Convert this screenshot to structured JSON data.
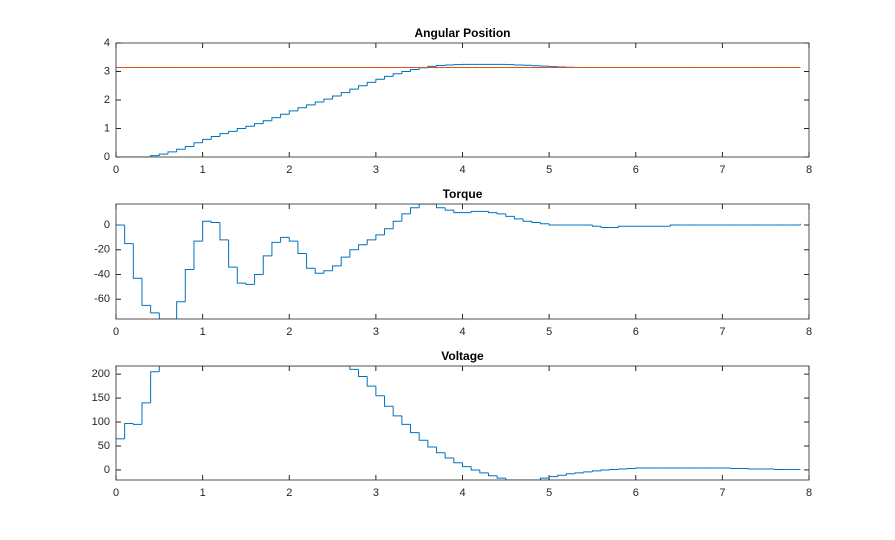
{
  "chart_data": [
    {
      "type": "stairs",
      "title": "Angular Position",
      "x": [
        0,
        0.1,
        0.2,
        0.3,
        0.4,
        0.5,
        0.6,
        0.7,
        0.8,
        0.9,
        1,
        1.1,
        1.2,
        1.3,
        1.4,
        1.5,
        1.6,
        1.7,
        1.8,
        1.9,
        2,
        2.1,
        2.2,
        2.3,
        2.4,
        2.5,
        2.6,
        2.7,
        2.8,
        2.9,
        3,
        3.1,
        3.2,
        3.3,
        3.4,
        3.5,
        3.6,
        3.7,
        3.8,
        3.9,
        4,
        4.1,
        4.2,
        4.3,
        4.4,
        4.5,
        4.6,
        4.7,
        4.8,
        4.9,
        5,
        5.1,
        5.2,
        5.3,
        5.4,
        5.5,
        5.6,
        5.7,
        5.8,
        5.9,
        6,
        6.1,
        6.2,
        6.3,
        6.4,
        6.5,
        6.6,
        6.7,
        6.8,
        6.9,
        7,
        7.1,
        7.2,
        7.3,
        7.4,
        7.5,
        7.6,
        7.7,
        7.8,
        7.9
      ],
      "series": [
        {
          "color": "#0072bd",
          "values": [
            0,
            0,
            0,
            0,
            0.05,
            0.1,
            0.18,
            0.27,
            0.37,
            0.5,
            0.62,
            0.72,
            0.82,
            0.9,
            1.0,
            1.08,
            1.17,
            1.27,
            1.38,
            1.5,
            1.62,
            1.73,
            1.83,
            1.93,
            2.03,
            2.14,
            2.26,
            2.38,
            2.5,
            2.62,
            2.73,
            2.83,
            2.92,
            3.0,
            3.07,
            3.13,
            3.18,
            3.21,
            3.23,
            3.24,
            3.25,
            3.25,
            3.25,
            3.25,
            3.25,
            3.24,
            3.23,
            3.22,
            3.2,
            3.19,
            3.17,
            3.16,
            3.15,
            3.15,
            null,
            null,
            null,
            null,
            null,
            null,
            null,
            null,
            null,
            null,
            null,
            null,
            null,
            null,
            null,
            null,
            null,
            null,
            null,
            null,
            null,
            null,
            null,
            null,
            null,
            null
          ]
        },
        {
          "color": "#d95319",
          "values": [
            3.14,
            3.14,
            3.14,
            3.14,
            3.14,
            3.14,
            3.14,
            3.14,
            3.14,
            3.14,
            3.14,
            3.14,
            3.14,
            3.14,
            3.14,
            3.14,
            3.14,
            3.14,
            3.14,
            3.14,
            3.14,
            3.14,
            3.14,
            3.14,
            3.14,
            3.14,
            3.14,
            3.14,
            3.14,
            3.14,
            3.14,
            3.14,
            3.14,
            3.14,
            3.14,
            3.14,
            3.14,
            3.14,
            3.14,
            3.14,
            3.14,
            3.14,
            3.14,
            3.14,
            3.14,
            3.14,
            3.14,
            3.14,
            3.14,
            3.14,
            3.14,
            3.14,
            3.14,
            3.14,
            3.14,
            3.14,
            3.14,
            3.14,
            3.14,
            3.14,
            3.14,
            3.14,
            3.14,
            3.14,
            3.14,
            3.14,
            3.14,
            3.14,
            3.14,
            3.14,
            3.14,
            3.14,
            3.14,
            3.14,
            3.14,
            3.14,
            3.14,
            3.14,
            3.14,
            3.14
          ]
        }
      ],
      "xlim": [
        0,
        8
      ],
      "xticks": [
        0,
        1,
        2,
        3,
        4,
        5,
        6,
        7,
        8
      ],
      "ylim": [
        0,
        4
      ],
      "yticks": [
        0,
        1,
        2,
        3,
        4
      ]
    },
    {
      "type": "stairs",
      "title": "Torque",
      "x": [
        0,
        0.1,
        0.2,
        0.3,
        0.4,
        0.5,
        0.6,
        0.7,
        0.8,
        0.9,
        1,
        1.1,
        1.2,
        1.3,
        1.4,
        1.5,
        1.6,
        1.7,
        1.8,
        1.9,
        2,
        2.1,
        2.2,
        2.3,
        2.4,
        2.5,
        2.6,
        2.7,
        2.8,
        2.9,
        3,
        3.1,
        3.2,
        3.3,
        3.4,
        3.5,
        3.6,
        3.7,
        3.8,
        3.9,
        4,
        4.1,
        4.2,
        4.3,
        4.4,
        4.5,
        4.6,
        4.7,
        4.8,
        4.9,
        5,
        5.1,
        5.2,
        5.3,
        5.4,
        5.5,
        5.6,
        5.7,
        5.8,
        5.9,
        6,
        6.1,
        6.2,
        6.3,
        6.4,
        6.5,
        6.6,
        6.7,
        6.8,
        6.9,
        7,
        7.1,
        7.2,
        7.3,
        7.4,
        7.5,
        7.6,
        7.7,
        7.8,
        7.9
      ],
      "series": [
        {
          "color": "#0072bd",
          "values": [
            0,
            -15,
            -43,
            -65,
            -71,
            -76,
            -76,
            -62,
            -36,
            -13,
            3,
            2,
            -12,
            -34,
            -47,
            -48,
            -40,
            -25,
            -14,
            -10,
            -13,
            -23,
            -35,
            -39,
            -37,
            -33,
            -26,
            -20,
            -16,
            -12,
            -8,
            -3,
            3,
            9,
            14,
            17,
            17,
            14,
            12,
            10,
            10,
            11,
            11,
            10,
            9,
            7,
            5,
            3,
            2,
            1,
            0,
            0,
            0,
            0,
            0,
            -1,
            -2,
            -2,
            -1,
            -1,
            -1,
            -1,
            -1,
            -1,
            0,
            0,
            0,
            0,
            0,
            0,
            0,
            0,
            0,
            0,
            0,
            0,
            0,
            0,
            0,
            1
          ]
        }
      ],
      "xlim": [
        0,
        8
      ],
      "xticks": [
        0,
        1,
        2,
        3,
        4,
        5,
        6,
        7,
        8
      ],
      "ylim": [
        -76,
        17
      ],
      "yticks": [
        -60,
        -40,
        -20,
        0
      ]
    },
    {
      "type": "stairs",
      "title": "Voltage",
      "x": [
        0,
        0.1,
        0.2,
        0.3,
        0.4,
        0.5,
        0.6,
        0.7,
        0.8,
        0.9,
        1,
        1.1,
        1.2,
        1.3,
        1.4,
        1.5,
        1.6,
        1.7,
        1.8,
        1.9,
        2,
        2.1,
        2.2,
        2.3,
        2.4,
        2.5,
        2.6,
        2.7,
        2.8,
        2.9,
        3,
        3.1,
        3.2,
        3.3,
        3.4,
        3.5,
        3.6,
        3.7,
        3.8,
        3.9,
        4,
        4.1,
        4.2,
        4.3,
        4.4,
        4.5,
        4.6,
        4.7,
        4.8,
        4.9,
        5,
        5.1,
        5.2,
        5.3,
        5.4,
        5.5,
        5.6,
        5.7,
        5.8,
        5.9,
        6,
        6.1,
        6.2,
        6.3,
        6.4,
        6.5,
        6.6,
        6.7,
        6.8,
        6.9,
        7,
        7.1,
        7.2,
        7.3,
        7.4,
        7.5,
        7.6,
        7.7,
        7.8,
        7.9
      ],
      "series": [
        {
          "color": "#0072bd",
          "values": [
            65,
            97,
            95,
            140,
            205,
            217,
            217,
            217,
            217,
            217,
            217,
            217,
            217,
            217,
            217,
            217,
            217,
            217,
            217,
            217,
            217,
            217,
            217,
            217,
            217,
            217,
            217,
            210,
            195,
            175,
            155,
            133,
            113,
            95,
            78,
            62,
            48,
            36,
            25,
            15,
            7,
            0,
            -6,
            -12,
            -17,
            -21,
            -21,
            -21,
            -21,
            -17,
            -14,
            -11,
            -8,
            -6,
            -4,
            -2,
            0,
            1,
            2,
            3,
            4,
            4,
            4,
            4,
            4,
            4,
            4,
            4,
            4,
            4,
            4,
            3,
            3,
            2,
            2,
            2,
            1,
            1,
            1,
            1
          ]
        }
      ],
      "xlim": [
        0,
        8
      ],
      "xticks": [
        0,
        1,
        2,
        3,
        4,
        5,
        6,
        7,
        8
      ],
      "ylim": [
        -21,
        217
      ],
      "yticks": [
        0,
        50,
        100,
        150,
        200
      ]
    }
  ]
}
